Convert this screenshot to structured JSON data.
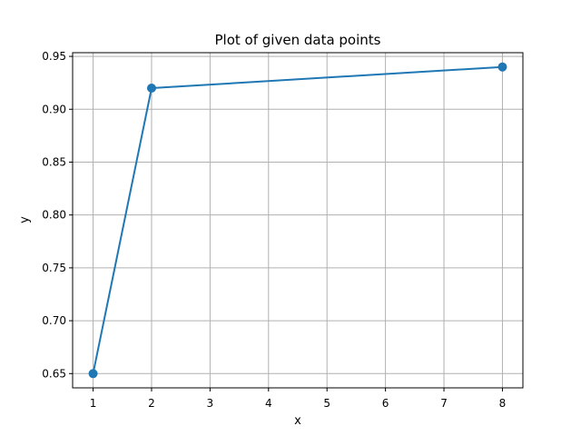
{
  "chart_data": {
    "type": "line",
    "title": "Plot of given data points",
    "xlabel": "x",
    "ylabel": "y",
    "x": [
      1,
      2,
      8
    ],
    "y": [
      0.65,
      0.92,
      0.94
    ],
    "xlim": [
      0.65,
      8.35
    ],
    "ylim": [
      0.6365,
      0.9535
    ],
    "xticks": [
      1,
      2,
      3,
      4,
      5,
      6,
      7,
      8
    ],
    "yticks": [
      0.65,
      0.7,
      0.75,
      0.8,
      0.85,
      0.9,
      0.95
    ],
    "ytick_labels": [
      "0.65",
      "0.70",
      "0.75",
      "0.80",
      "0.85",
      "0.90",
      "0.95"
    ],
    "grid": true,
    "legend": "none",
    "colors": {
      "series": "#1f77b4",
      "grid": "#b0b0b0",
      "axes": "#000000"
    }
  }
}
